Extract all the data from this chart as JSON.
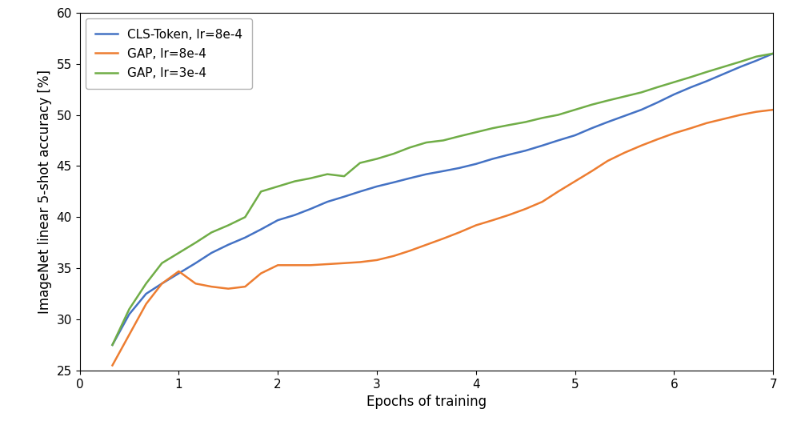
{
  "xlabel": "Epochs of training",
  "ylabel": "ImageNet linear 5-shot accuracy [%]",
  "xlim": [
    0,
    7
  ],
  "ylim": [
    25,
    60
  ],
  "yticks": [
    25,
    30,
    35,
    40,
    45,
    50,
    55,
    60
  ],
  "xticks": [
    0,
    1,
    2,
    3,
    4,
    5,
    6,
    7
  ],
  "series": [
    {
      "label": "CLS-Token, lr=8e-4",
      "color": "#4472c4",
      "x": [
        0.33,
        0.5,
        0.67,
        0.83,
        1.0,
        1.17,
        1.33,
        1.5,
        1.67,
        1.83,
        2.0,
        2.17,
        2.33,
        2.5,
        2.67,
        2.83,
        3.0,
        3.17,
        3.33,
        3.5,
        3.67,
        3.83,
        4.0,
        4.17,
        4.33,
        4.5,
        4.67,
        4.83,
        5.0,
        5.17,
        5.33,
        5.5,
        5.67,
        5.83,
        6.0,
        6.17,
        6.33,
        6.5,
        6.67,
        6.83,
        7.0
      ],
      "y": [
        27.5,
        30.5,
        32.5,
        33.5,
        34.5,
        35.5,
        36.5,
        37.3,
        38.0,
        38.8,
        39.7,
        40.2,
        40.8,
        41.5,
        42.0,
        42.5,
        43.0,
        43.4,
        43.8,
        44.2,
        44.5,
        44.8,
        45.2,
        45.7,
        46.1,
        46.5,
        47.0,
        47.5,
        48.0,
        48.7,
        49.3,
        49.9,
        50.5,
        51.2,
        52.0,
        52.7,
        53.3,
        54.0,
        54.7,
        55.3,
        56.0
      ]
    },
    {
      "label": "GAP, lr=8e-4",
      "color": "#ed7d31",
      "x": [
        0.33,
        0.5,
        0.67,
        0.83,
        1.0,
        1.17,
        1.33,
        1.5,
        1.67,
        1.83,
        2.0,
        2.17,
        2.33,
        2.5,
        2.67,
        2.83,
        3.0,
        3.17,
        3.33,
        3.5,
        3.67,
        3.83,
        4.0,
        4.17,
        4.33,
        4.5,
        4.67,
        4.83,
        5.0,
        5.17,
        5.33,
        5.5,
        5.67,
        5.83,
        6.0,
        6.17,
        6.33,
        6.5,
        6.67,
        6.83,
        7.0
      ],
      "y": [
        25.5,
        28.5,
        31.5,
        33.5,
        34.7,
        33.5,
        33.2,
        33.0,
        33.2,
        34.5,
        35.3,
        35.3,
        35.3,
        35.4,
        35.5,
        35.6,
        35.8,
        36.2,
        36.7,
        37.3,
        37.9,
        38.5,
        39.2,
        39.7,
        40.2,
        40.8,
        41.5,
        42.5,
        43.5,
        44.5,
        45.5,
        46.3,
        47.0,
        47.6,
        48.2,
        48.7,
        49.2,
        49.6,
        50.0,
        50.3,
        50.5
      ]
    },
    {
      "label": "GAP, lr=3e-4",
      "color": "#70ad47",
      "x": [
        0.33,
        0.5,
        0.67,
        0.83,
        1.0,
        1.17,
        1.33,
        1.5,
        1.67,
        1.83,
        2.0,
        2.17,
        2.33,
        2.5,
        2.67,
        2.83,
        3.0,
        3.17,
        3.33,
        3.5,
        3.67,
        3.83,
        4.0,
        4.17,
        4.33,
        4.5,
        4.67,
        4.83,
        5.0,
        5.17,
        5.33,
        5.5,
        5.67,
        5.83,
        6.0,
        6.17,
        6.33,
        6.5,
        6.67,
        6.83,
        7.0
      ],
      "y": [
        27.5,
        31.0,
        33.5,
        35.5,
        36.5,
        37.5,
        38.5,
        39.2,
        40.0,
        42.5,
        43.0,
        43.5,
        43.8,
        44.2,
        44.0,
        45.3,
        45.7,
        46.2,
        46.8,
        47.3,
        47.5,
        47.9,
        48.3,
        48.7,
        49.0,
        49.3,
        49.7,
        50.0,
        50.5,
        51.0,
        51.4,
        51.8,
        52.2,
        52.7,
        53.2,
        53.7,
        54.2,
        54.7,
        55.2,
        55.7,
        56.0
      ]
    }
  ],
  "linewidth": 1.8,
  "legend_loc": "upper left",
  "legend_fontsize": 11,
  "figsize": [
    9.96,
    5.26
  ],
  "dpi": 100
}
